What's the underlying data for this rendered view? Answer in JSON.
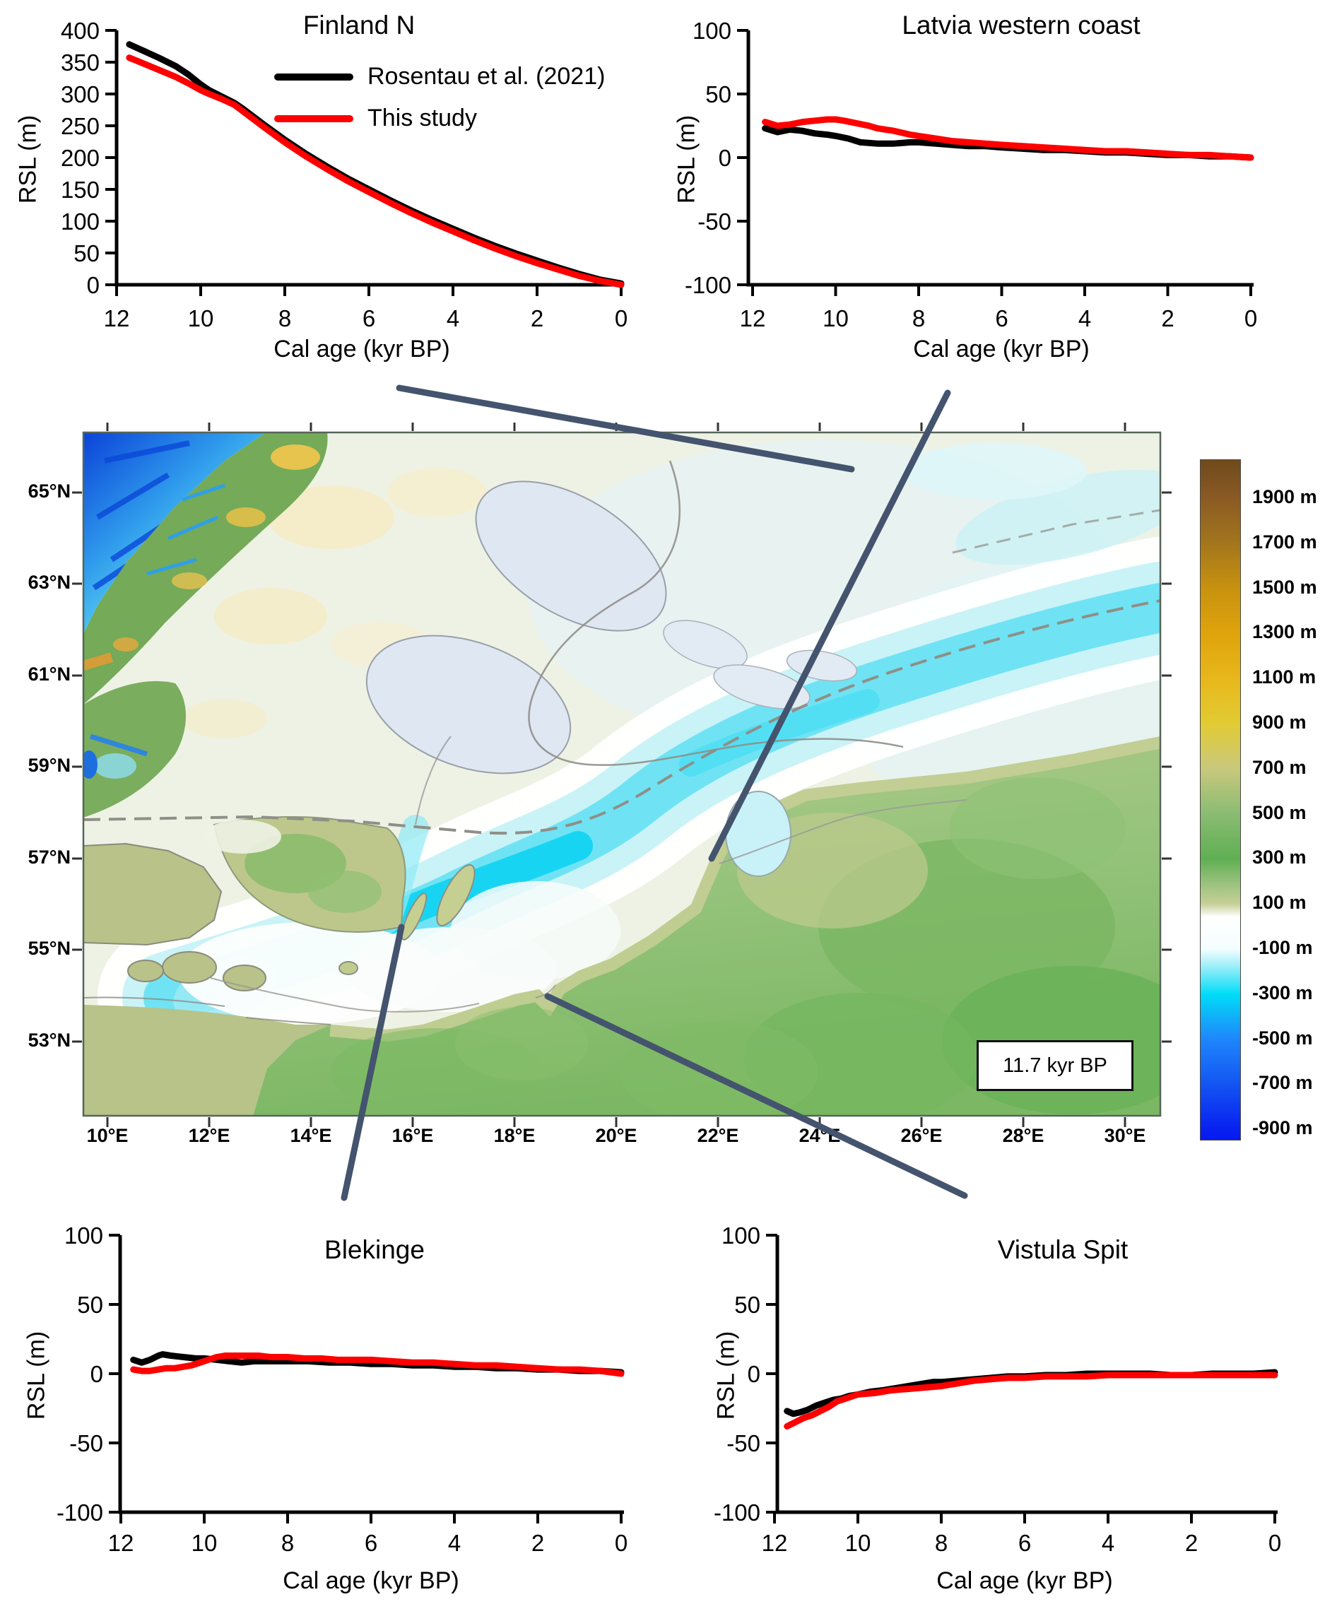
{
  "figure": {
    "time_label": "11.7 kyr BP"
  },
  "legend": {
    "entries": [
      {
        "label": "Rosentau et al. (2021)",
        "color": "#000000"
      },
      {
        "label": "This study",
        "color": "#fe0000"
      }
    ]
  },
  "map": {
    "annotation": "11.7 kyr BP",
    "lat_labels": [
      "65°N",
      "63°N",
      "61°N",
      "59°N",
      "57°N",
      "55°N",
      "53°N"
    ],
    "lon_labels": [
      "10°E",
      "12°E",
      "14°E",
      "16°E",
      "18°E",
      "20°E",
      "22°E",
      "24°E",
      "26°E",
      "28°E",
      "30°E"
    ],
    "colorbar": {
      "labels": [
        "1900 m",
        "1700 m",
        "1500 m",
        "1300 m",
        "1100 m",
        "900 m",
        "700 m",
        "500 m",
        "300 m",
        "100 m",
        "-100 m",
        "-300 m",
        "-500 m",
        "-700 m",
        "-900 m"
      ]
    }
  },
  "chart_data": [
    {
      "id": "finland-n",
      "type": "line",
      "title": "Finland N",
      "xlabel": "Cal age (kyr BP)",
      "ylabel": "RSL (m)",
      "xlim": [
        12,
        0
      ],
      "ylim": [
        0,
        400
      ],
      "xticks": [
        12,
        10,
        8,
        6,
        4,
        2,
        0
      ],
      "yticks": [
        400,
        350,
        300,
        250,
        200,
        150,
        100,
        50,
        0
      ],
      "series": [
        {
          "name": "Rosentau et al. (2021)",
          "color": "#000000",
          "points": [
            [
              11.7,
              378
            ],
            [
              11.4,
              369
            ],
            [
              11,
              357
            ],
            [
              10.6,
              344
            ],
            [
              10.3,
              331
            ],
            [
              10,
              315
            ],
            [
              9.8,
              306
            ],
            [
              9.5,
              296
            ],
            [
              9.2,
              286
            ],
            [
              9,
              277
            ],
            [
              8.5,
              252
            ],
            [
              8,
              228
            ],
            [
              7.5,
              206
            ],
            [
              7,
              186
            ],
            [
              6.5,
              167
            ],
            [
              6,
              150
            ],
            [
              5.5,
              133
            ],
            [
              5,
              117
            ],
            [
              4.5,
              102
            ],
            [
              4,
              88
            ],
            [
              3.5,
              74
            ],
            [
              3,
              61
            ],
            [
              2.5,
              49
            ],
            [
              2,
              38
            ],
            [
              1.5,
              27
            ],
            [
              1,
              17
            ],
            [
              0.5,
              8
            ],
            [
              0,
              2
            ]
          ]
        },
        {
          "name": "This study",
          "color": "#fe0000",
          "points": [
            [
              11.7,
              357
            ],
            [
              11.4,
              349
            ],
            [
              11,
              338
            ],
            [
              10.6,
              327
            ],
            [
              10.3,
              317
            ],
            [
              10,
              306
            ],
            [
              9.8,
              300
            ],
            [
              9.5,
              292
            ],
            [
              9.2,
              283
            ],
            [
              9,
              273
            ],
            [
              8.5,
              248
            ],
            [
              8,
              224
            ],
            [
              7.5,
              202
            ],
            [
              7,
              182
            ],
            [
              6.5,
              163
            ],
            [
              6,
              146
            ],
            [
              5.5,
              129
            ],
            [
              5,
              113
            ],
            [
              4.5,
              98
            ],
            [
              4,
              84
            ],
            [
              3.5,
              70
            ],
            [
              3,
              57
            ],
            [
              2.5,
              45
            ],
            [
              2,
              34
            ],
            [
              1.5,
              24
            ],
            [
              1,
              14
            ],
            [
              0.5,
              6
            ],
            [
              0,
              0
            ]
          ]
        }
      ]
    },
    {
      "id": "latvia-western-coast",
      "type": "line",
      "title": "Latvia western coast",
      "xlabel": "Cal age (kyr BP)",
      "ylabel": "RSL (m)",
      "xlim": [
        12,
        0
      ],
      "ylim": [
        -100,
        100
      ],
      "xticks": [
        12,
        10,
        8,
        6,
        4,
        2,
        0
      ],
      "yticks": [
        100,
        50,
        0,
        -50,
        -100
      ],
      "series": [
        {
          "name": "Rosentau et al. (2021)",
          "color": "#000000",
          "points": [
            [
              11.7,
              23
            ],
            [
              11.4,
              20
            ],
            [
              11.1,
              22
            ],
            [
              10.8,
              21
            ],
            [
              10.5,
              19
            ],
            [
              10.2,
              18
            ],
            [
              10,
              17
            ],
            [
              9.7,
              15
            ],
            [
              9.4,
              12
            ],
            [
              9,
              11
            ],
            [
              8.6,
              11
            ],
            [
              8.2,
              12
            ],
            [
              8,
              12
            ],
            [
              7.6,
              11
            ],
            [
              7.2,
              10
            ],
            [
              6.8,
              9
            ],
            [
              6.4,
              9
            ],
            [
              6,
              8
            ],
            [
              5.5,
              7
            ],
            [
              5,
              6
            ],
            [
              4.5,
              6
            ],
            [
              4,
              5
            ],
            [
              3.5,
              4
            ],
            [
              3,
              4
            ],
            [
              2.5,
              3
            ],
            [
              2,
              2
            ],
            [
              1.5,
              2
            ],
            [
              1,
              1
            ],
            [
              0.5,
              1
            ],
            [
              0,
              0
            ]
          ]
        },
        {
          "name": "This study",
          "color": "#fe0000",
          "points": [
            [
              11.7,
              28
            ],
            [
              11.4,
              25
            ],
            [
              11.1,
              26
            ],
            [
              10.8,
              28
            ],
            [
              10.5,
              29
            ],
            [
              10.2,
              30
            ],
            [
              10,
              30
            ],
            [
              9.8,
              29
            ],
            [
              9.5,
              27
            ],
            [
              9.2,
              25
            ],
            [
              9,
              23
            ],
            [
              8.6,
              21
            ],
            [
              8.2,
              18
            ],
            [
              8,
              17
            ],
            [
              7.6,
              15
            ],
            [
              7.2,
              13
            ],
            [
              6.8,
              12
            ],
            [
              6.4,
              11
            ],
            [
              6,
              10
            ],
            [
              5.5,
              9
            ],
            [
              5,
              8
            ],
            [
              4.5,
              7
            ],
            [
              4,
              6
            ],
            [
              3.5,
              5
            ],
            [
              3,
              5
            ],
            [
              2.5,
              4
            ],
            [
              2,
              3
            ],
            [
              1.5,
              2
            ],
            [
              1,
              2
            ],
            [
              0.5,
              1
            ],
            [
              0,
              0
            ]
          ]
        }
      ]
    },
    {
      "id": "blekinge",
      "type": "line",
      "title": "Blekinge",
      "xlabel": "Cal age (kyr BP)",
      "ylabel": "RSL (m)",
      "xlim": [
        12,
        0
      ],
      "ylim": [
        -100,
        100
      ],
      "xticks": [
        12,
        10,
        8,
        6,
        4,
        2,
        0
      ],
      "yticks": [
        100,
        50,
        0,
        -50,
        -100
      ],
      "series": [
        {
          "name": "Rosentau et al. (2021)",
          "color": "#000000",
          "points": [
            [
              11.7,
              10
            ],
            [
              11.5,
              8
            ],
            [
              11.3,
              10
            ],
            [
              11.1,
              13
            ],
            [
              11,
              14
            ],
            [
              10.8,
              13
            ],
            [
              10.5,
              12
            ],
            [
              10.2,
              11
            ],
            [
              10,
              11
            ],
            [
              9.7,
              10
            ],
            [
              9.4,
              9
            ],
            [
              9.1,
              8
            ],
            [
              8.8,
              9
            ],
            [
              8.5,
              9
            ],
            [
              8,
              9
            ],
            [
              7.5,
              9
            ],
            [
              7,
              8
            ],
            [
              6.5,
              8
            ],
            [
              6,
              7
            ],
            [
              5.5,
              7
            ],
            [
              5,
              6
            ],
            [
              4.5,
              6
            ],
            [
              4,
              5
            ],
            [
              3.5,
              5
            ],
            [
              3,
              4
            ],
            [
              2.5,
              4
            ],
            [
              2,
              3
            ],
            [
              1.5,
              3
            ],
            [
              1,
              2
            ],
            [
              0.5,
              2
            ],
            [
              0,
              1
            ]
          ]
        },
        {
          "name": "This study",
          "color": "#fe0000",
          "points": [
            [
              11.7,
              3
            ],
            [
              11.5,
              2
            ],
            [
              11.3,
              2
            ],
            [
              11.1,
              3
            ],
            [
              10.9,
              4
            ],
            [
              10.7,
              4
            ],
            [
              10.5,
              5
            ],
            [
              10.3,
              6
            ],
            [
              10.1,
              8
            ],
            [
              9.9,
              10
            ],
            [
              9.7,
              12
            ],
            [
              9.5,
              13
            ],
            [
              9.3,
              13
            ],
            [
              9,
              13
            ],
            [
              8.7,
              13
            ],
            [
              8.4,
              12
            ],
            [
              8,
              12
            ],
            [
              7.6,
              11
            ],
            [
              7.2,
              11
            ],
            [
              6.8,
              10
            ],
            [
              6.4,
              10
            ],
            [
              6,
              10
            ],
            [
              5.5,
              9
            ],
            [
              5,
              8
            ],
            [
              4.5,
              8
            ],
            [
              4,
              7
            ],
            [
              3.5,
              6
            ],
            [
              3,
              6
            ],
            [
              2.5,
              5
            ],
            [
              2,
              4
            ],
            [
              1.5,
              3
            ],
            [
              1,
              3
            ],
            [
              0.5,
              2
            ],
            [
              0,
              0
            ]
          ]
        }
      ]
    },
    {
      "id": "vistula-spit",
      "type": "line",
      "title": "Vistula Spit",
      "xlabel": "Cal age (kyr BP)",
      "ylabel": "RSL (m)",
      "xlim": [
        12,
        0
      ],
      "ylim": [
        -100,
        100
      ],
      "xticks": [
        12,
        10,
        8,
        6,
        4,
        2,
        0
      ],
      "yticks": [
        100,
        50,
        0,
        -50,
        -100
      ],
      "series": [
        {
          "name": "Rosentau et al. (2021)",
          "color": "#000000",
          "points": [
            [
              11.7,
              -27
            ],
            [
              11.55,
              -29
            ],
            [
              11.4,
              -28
            ],
            [
              11.2,
              -26
            ],
            [
              11,
              -23
            ],
            [
              10.8,
              -21
            ],
            [
              10.6,
              -19
            ],
            [
              10.4,
              -18
            ],
            [
              10.2,
              -16
            ],
            [
              10,
              -15
            ],
            [
              9.7,
              -13
            ],
            [
              9.4,
              -12
            ],
            [
              9,
              -10
            ],
            [
              8.6,
              -8
            ],
            [
              8.2,
              -6
            ],
            [
              8,
              -6
            ],
            [
              7.6,
              -5
            ],
            [
              7.2,
              -4
            ],
            [
              6.8,
              -3
            ],
            [
              6.4,
              -2
            ],
            [
              6,
              -2
            ],
            [
              5.5,
              -1
            ],
            [
              5,
              -1
            ],
            [
              4.5,
              0
            ],
            [
              4,
              0
            ],
            [
              3.5,
              0
            ],
            [
              3,
              0
            ],
            [
              2.5,
              -1
            ],
            [
              2,
              -1
            ],
            [
              1.5,
              0
            ],
            [
              1,
              0
            ],
            [
              0.5,
              0
            ],
            [
              0,
              1
            ]
          ]
        },
        {
          "name": "This study",
          "color": "#fe0000",
          "points": [
            [
              11.7,
              -38
            ],
            [
              11.5,
              -35
            ],
            [
              11.3,
              -32
            ],
            [
              11.1,
              -30
            ],
            [
              10.9,
              -27
            ],
            [
              10.7,
              -24
            ],
            [
              10.5,
              -20
            ],
            [
              10.3,
              -18
            ],
            [
              10.1,
              -16
            ],
            [
              10,
              -15
            ],
            [
              9.6,
              -14
            ],
            [
              9.2,
              -12
            ],
            [
              8.8,
              -11
            ],
            [
              8.4,
              -10
            ],
            [
              8,
              -9
            ],
            [
              7.6,
              -7
            ],
            [
              7.2,
              -5
            ],
            [
              6.8,
              -4
            ],
            [
              6.4,
              -3
            ],
            [
              6,
              -3
            ],
            [
              5.5,
              -2
            ],
            [
              5,
              -2
            ],
            [
              4.5,
              -2
            ],
            [
              4,
              -1
            ],
            [
              3.5,
              -1
            ],
            [
              3,
              -1
            ],
            [
              2.5,
              -1
            ],
            [
              2,
              -1
            ],
            [
              1.5,
              -1
            ],
            [
              1,
              -1
            ],
            [
              0.5,
              -1
            ],
            [
              0,
              -1
            ]
          ]
        }
      ]
    }
  ]
}
